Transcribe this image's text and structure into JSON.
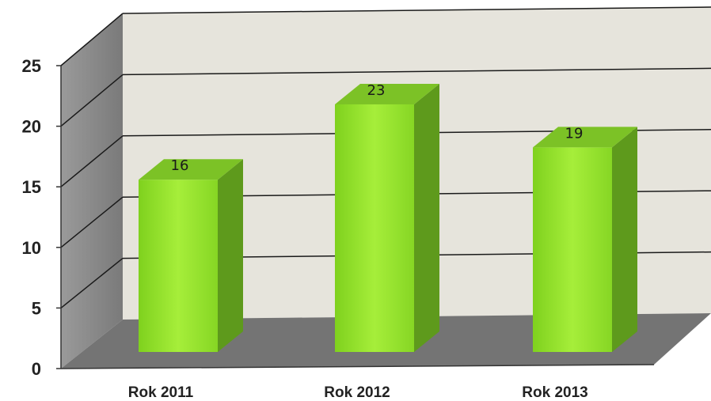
{
  "chart_data": {
    "type": "bar",
    "categories": [
      "Rok 2011",
      "Rok 2012",
      "Rok 2013"
    ],
    "values": [
      16,
      23,
      19
    ],
    "data_labels": [
      "16",
      "23",
      "19"
    ],
    "ylim": [
      0,
      25
    ],
    "yticks": [
      "0",
      "5",
      "10",
      "15",
      "20",
      "25"
    ],
    "grid": true,
    "three_d": true,
    "colors": {
      "bar_front": "#8fdc2c",
      "bar_side": "#5e9a1c",
      "bar_top": "#7cc226",
      "back_wall": "#e6e4dc",
      "side_wall": "#8a8a8a",
      "floor": "#747474",
      "gridline": "#1a1a1a"
    }
  }
}
